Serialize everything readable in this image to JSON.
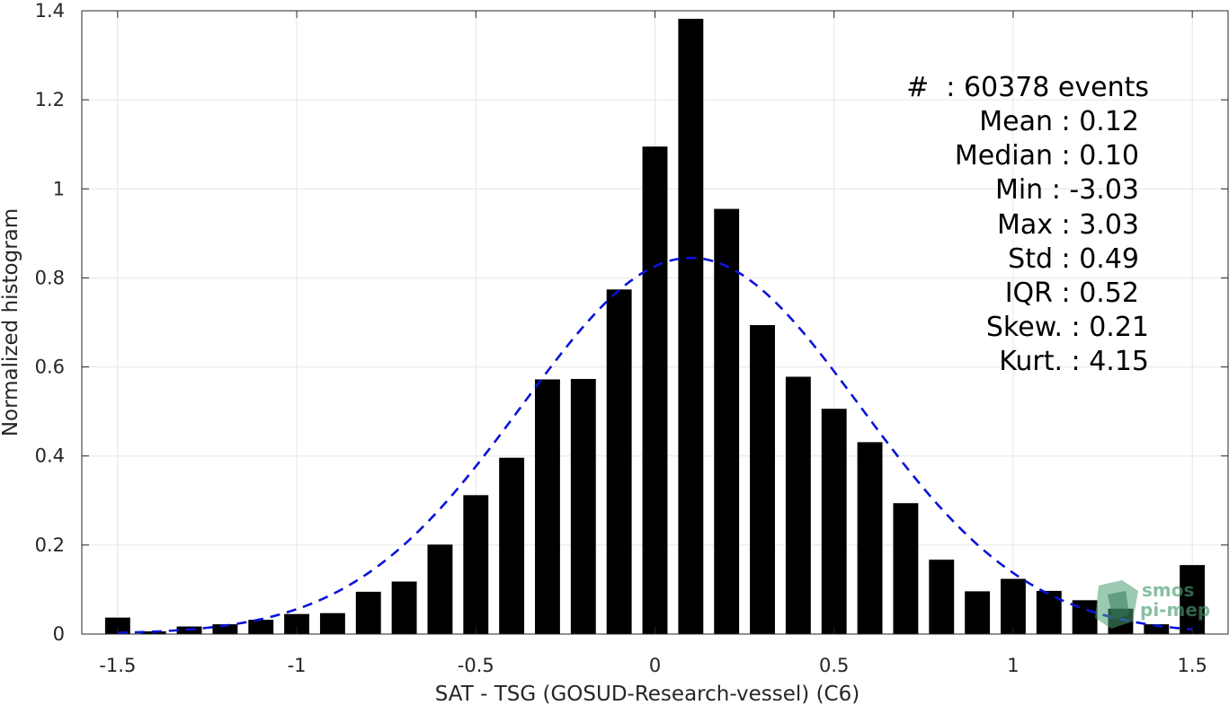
{
  "chart_data": {
    "type": "bar",
    "xlabel": "SAT - TSG (GOSUD-Research-vessel) (C6)",
    "ylabel": "Normalized histogram",
    "xlim": [
      -1.6,
      1.6
    ],
    "ylim": [
      0,
      1.4
    ],
    "xticks": [
      -1.5,
      -1,
      -0.5,
      0,
      0.5,
      1,
      1.5
    ],
    "xtick_labels": [
      "-1.5",
      "-1",
      "-0.5",
      "0",
      "0.5",
      "1",
      "1.5"
    ],
    "yticks": [
      0,
      0.2,
      0.4,
      0.6,
      0.8,
      1,
      1.2,
      1.4
    ],
    "ytick_labels": [
      "0",
      "0.2",
      "0.4",
      "0.6",
      "0.8",
      "1",
      "1.2",
      "1.4"
    ],
    "grid": true,
    "bar_width": 0.07,
    "bar_color": "#000000",
    "bars": {
      "x": [
        -1.5,
        -1.4,
        -1.3,
        -1.2,
        -1.1,
        -1.0,
        -0.9,
        -0.8,
        -0.7,
        -0.6,
        -0.5,
        -0.4,
        -0.3,
        -0.2,
        -0.1,
        0.0,
        0.1,
        0.2,
        0.3,
        0.4,
        0.5,
        0.6,
        0.7,
        0.8,
        0.9,
        1.0,
        1.1,
        1.2,
        1.3,
        1.4,
        1.5
      ],
      "values": [
        0.037,
        0.006,
        0.017,
        0.022,
        0.032,
        0.045,
        0.047,
        0.095,
        0.118,
        0.201,
        0.312,
        0.396,
        0.572,
        0.573,
        0.774,
        1.095,
        1.382,
        0.955,
        0.694,
        0.578,
        0.506,
        0.431,
        0.294,
        0.167,
        0.096,
        0.124,
        0.097,
        0.076,
        0.057,
        0.022,
        0.155
      ]
    },
    "fit_curve": {
      "style": "dashed",
      "color": "#0a14d8",
      "mean": 0.1,
      "std": 0.472,
      "peak": 0.845,
      "x_range": [
        -1.5,
        1.5
      ]
    },
    "stats": {
      "count_line": "#  : 60378 events",
      "lines": [
        "Mean : 0.12",
        "Median : 0.10",
        "Min : -3.03",
        "Max : 3.03",
        "Std : 0.49",
        "IQR : 0.52",
        "Skew. : 0.21",
        "Kurt. : 4.15"
      ]
    },
    "watermark": {
      "line1": "smos",
      "line2": "pi-mep",
      "color": "#4a9d72"
    }
  }
}
